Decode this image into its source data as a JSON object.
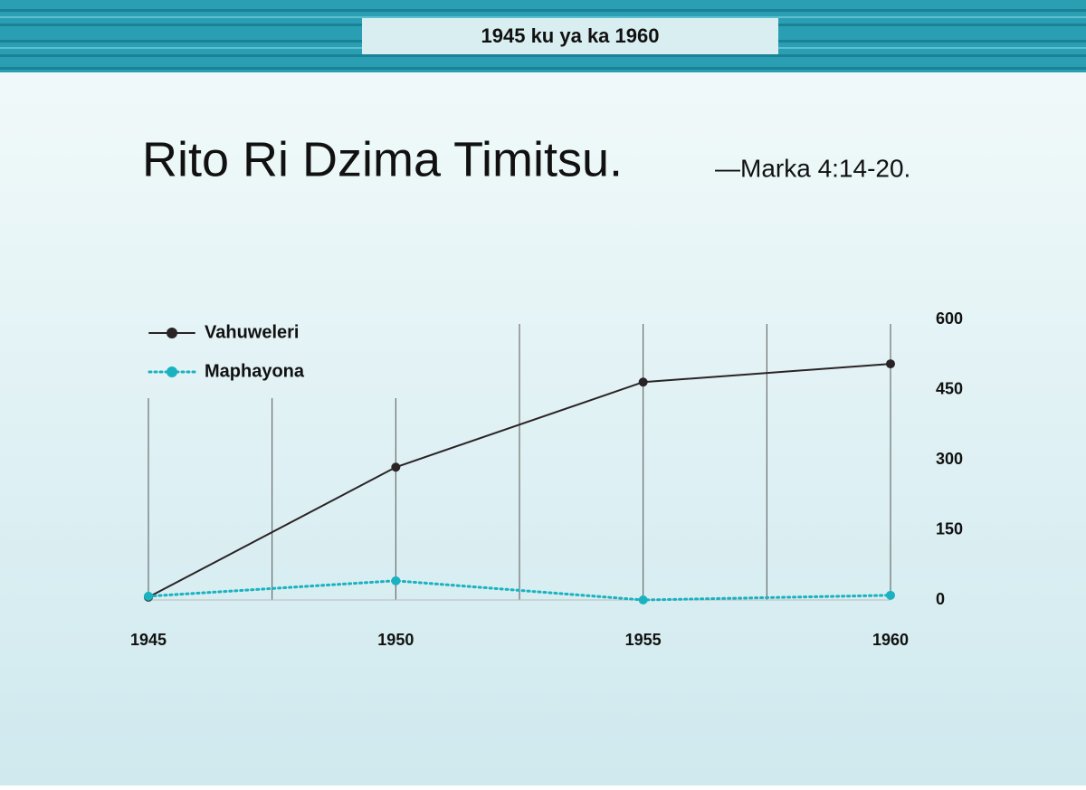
{
  "header": {
    "title": "1945 ku ya ka 1960"
  },
  "chart_data": {
    "type": "line",
    "title": "Rito Ri Dzima Timitsu.",
    "subtitle": "—Marka  4:14-20.",
    "x": [
      1945,
      1950,
      1955,
      1960
    ],
    "xlim": [
      1945,
      1960
    ],
    "xticks": [
      1945,
      1950,
      1955,
      1960
    ],
    "ylim": [
      0,
      600
    ],
    "yticks": [
      0,
      150,
      300,
      450,
      600
    ],
    "y_axis_side": "right",
    "grid": true,
    "legend": "upper left",
    "series": [
      {
        "name": "Vahuweleri",
        "color": "#2a2326",
        "style": "solid",
        "values": [
          6,
          284,
          466,
          505
        ]
      },
      {
        "name": "Maphayona",
        "color": "#1ab2c0",
        "style": "dotted",
        "values": [
          8,
          41,
          0,
          10
        ]
      }
    ]
  }
}
